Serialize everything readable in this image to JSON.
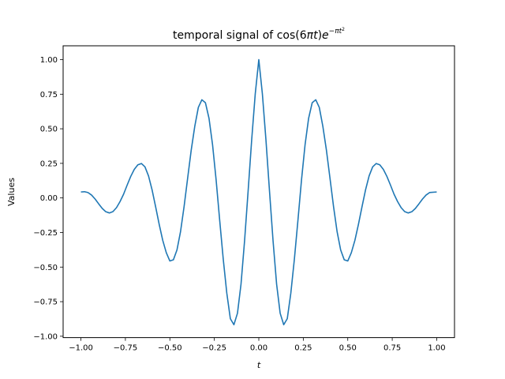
{
  "chart_data": {
    "type": "line",
    "title": {
      "prefix": "temporal signal of cos(6",
      "pi": "π",
      "t1": "t",
      "close": ")",
      "e": "e",
      "exp_minus": "−",
      "exp_pi": "π",
      "exp_t": "t",
      "exp_sq": "2"
    },
    "xlabel": "t",
    "ylabel": "Values",
    "xlim": [
      -1.1,
      1.1
    ],
    "ylim": [
      -1.01,
      1.1
    ],
    "xticks": [
      -1.0,
      -0.75,
      -0.5,
      -0.25,
      0.0,
      0.25,
      0.5,
      0.75,
      1.0
    ],
    "xtick_labels": [
      "−1.00",
      "−0.75",
      "−0.50",
      "−0.25",
      "0.00",
      "0.25",
      "0.50",
      "0.75",
      "1.00"
    ],
    "yticks": [
      -1.0,
      -0.75,
      -0.5,
      -0.25,
      0.0,
      0.25,
      0.5,
      0.75,
      1.0
    ],
    "ytick_labels": [
      "−1.00",
      "−0.75",
      "−0.50",
      "−0.25",
      "0.00",
      "0.25",
      "0.50",
      "0.75",
      "1.00"
    ],
    "grid": false,
    "series": [
      {
        "color": "#1f77b4",
        "x": [
          -1.0,
          -0.98,
          -0.96,
          -0.94,
          -0.92,
          -0.9,
          -0.88,
          -0.86,
          -0.84,
          -0.82,
          -0.8,
          -0.78,
          -0.76,
          -0.74,
          -0.72,
          -0.7,
          -0.68,
          -0.66,
          -0.64,
          -0.62,
          -0.6,
          -0.58,
          -0.56,
          -0.54,
          -0.52,
          -0.5,
          -0.48,
          -0.46,
          -0.44,
          -0.42,
          -0.4,
          -0.38,
          -0.36,
          -0.34,
          -0.32,
          -0.3,
          -0.28,
          -0.26,
          -0.24,
          -0.22,
          -0.2,
          -0.18,
          -0.16,
          -0.14,
          -0.12,
          -0.1,
          -0.08,
          -0.06,
          -0.04,
          -0.02,
          0.0,
          0.02,
          0.04,
          0.06,
          0.08,
          0.1,
          0.12,
          0.14,
          0.16,
          0.18,
          0.2,
          0.22,
          0.24,
          0.26,
          0.28,
          0.3,
          0.32,
          0.34,
          0.36,
          0.38,
          0.4,
          0.42,
          0.44,
          0.46,
          0.48,
          0.5,
          0.52,
          0.54,
          0.56,
          0.58,
          0.6,
          0.62,
          0.64,
          0.66,
          0.68,
          0.7,
          0.72,
          0.74,
          0.76,
          0.78,
          0.8,
          0.82,
          0.84,
          0.86,
          0.88,
          0.9,
          0.92,
          0.94,
          0.96,
          1.0
        ],
        "y": [
          0.0432,
          0.0451,
          0.039,
          0.0206,
          -0.0083,
          -0.0429,
          -0.0759,
          -0.0998,
          -0.1085,
          -0.0989,
          -0.0704,
          -0.0261,
          0.0275,
          0.0931,
          0.1555,
          0.2065,
          0.2391,
          0.2488,
          0.2246,
          0.159,
          0.0583,
          -0.0644,
          -0.1913,
          -0.3068,
          -0.396,
          -0.4559,
          -0.4469,
          -0.3759,
          -0.2433,
          -0.0617,
          0.1435,
          0.3456,
          0.5178,
          0.6545,
          0.71,
          0.688,
          0.576,
          0.3847,
          0.1307,
          -0.1607,
          -0.4416,
          -0.688,
          -0.873,
          -0.9167,
          -0.8336,
          -0.623,
          -0.3094,
          0.0513,
          0.421,
          0.753,
          1.0,
          0.753,
          0.421,
          0.0513,
          -0.3094,
          -0.623,
          -0.8336,
          -0.9167,
          -0.873,
          -0.688,
          -0.4416,
          -0.1607,
          0.1307,
          0.3847,
          0.576,
          0.688,
          0.71,
          0.6545,
          0.5178,
          0.3456,
          0.1435,
          -0.0617,
          -0.2433,
          -0.3759,
          -0.4469,
          -0.4559,
          -0.396,
          -0.3068,
          -0.1913,
          -0.0644,
          0.0583,
          0.159,
          0.2246,
          0.2488,
          0.2391,
          0.2065,
          0.1555,
          0.0931,
          0.0275,
          -0.0261,
          -0.0704,
          -0.0989,
          -0.1085,
          -0.0998,
          -0.0759,
          -0.0429,
          -0.0083,
          0.0206,
          0.039,
          0.0432
        ]
      }
    ]
  }
}
